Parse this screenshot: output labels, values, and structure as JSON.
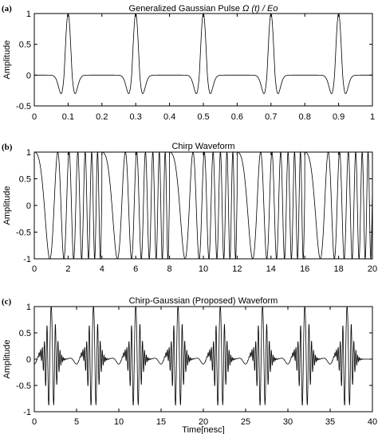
{
  "chart_data": [
    {
      "type": "line",
      "panel_label": "(a)",
      "title": "Generalized Gaussian Pulse",
      "title_suffix": "Ω (t) / Eo",
      "xlabel": "",
      "ylabel": "Amplitude",
      "xlim": [
        0,
        1
      ],
      "ylim": [
        -0.5,
        1
      ],
      "xticks": [
        0,
        0.1,
        0.2,
        0.3,
        0.4,
        0.5,
        0.6,
        0.7,
        0.8,
        0.9,
        1
      ],
      "yticks": [
        -0.5,
        0,
        0.5,
        1
      ],
      "xtick_labels": [
        "0",
        "0.1",
        "0.2",
        "0.3",
        "0.4",
        "0.5",
        "0.6",
        "0.7",
        "0.8",
        "0.9",
        "1"
      ],
      "ytick_labels": [
        "-0.5",
        "0",
        "0.5",
        "1"
      ],
      "signal": {
        "shape": "second-derivative Gaussian pulse train",
        "pulse_centers": [
          0.1,
          0.3,
          0.5,
          0.7,
          0.9
        ],
        "peak": 1.0,
        "trough": -0.3
      }
    },
    {
      "type": "line",
      "panel_label": "(b)",
      "title": "Chirp Waveform",
      "xlabel": "",
      "ylabel": "Amplitude",
      "xlim": [
        0,
        20
      ],
      "ylim": [
        -1,
        1
      ],
      "xticks": [
        0,
        2,
        4,
        6,
        8,
        10,
        12,
        14,
        16,
        18,
        20
      ],
      "yticks": [
        -1,
        -0.5,
        0,
        0.5,
        1
      ],
      "xtick_labels": [
        "0",
        "2",
        "4",
        "6",
        "8",
        "10",
        "12",
        "14",
        "16",
        "18",
        "20"
      ],
      "ytick_labels": [
        "-1",
        "-0.5",
        "0",
        "0.5",
        "1"
      ],
      "signal": {
        "shape": "repeating linear chirp",
        "period": 4,
        "start_frequency": 0.2,
        "end_frequency": 3.2,
        "amplitude": 1
      }
    },
    {
      "type": "line",
      "panel_label": "(c)",
      "title": "Chirp-Gaussian (Proposed) Waveform",
      "xlabel": "Time[nesc]",
      "ylabel": "Amplitude",
      "xlim": [
        0,
        40
      ],
      "ylim": [
        -1,
        1
      ],
      "xticks": [
        0,
        5,
        10,
        15,
        20,
        25,
        30,
        35,
        40
      ],
      "yticks": [
        -1,
        -0.5,
        0,
        0.5,
        1
      ],
      "xtick_labels": [
        "0",
        "5",
        "10",
        "15",
        "20",
        "25",
        "30",
        "35",
        "40"
      ],
      "ytick_labels": [
        "-1",
        "-0.5",
        "0",
        "0.5",
        "1"
      ],
      "signal": {
        "shape": "chirp modulated by Gaussian pulse train",
        "pulse_centers": [
          2,
          7,
          12,
          17,
          22,
          27,
          32,
          37
        ],
        "amplitude": 1
      }
    }
  ]
}
